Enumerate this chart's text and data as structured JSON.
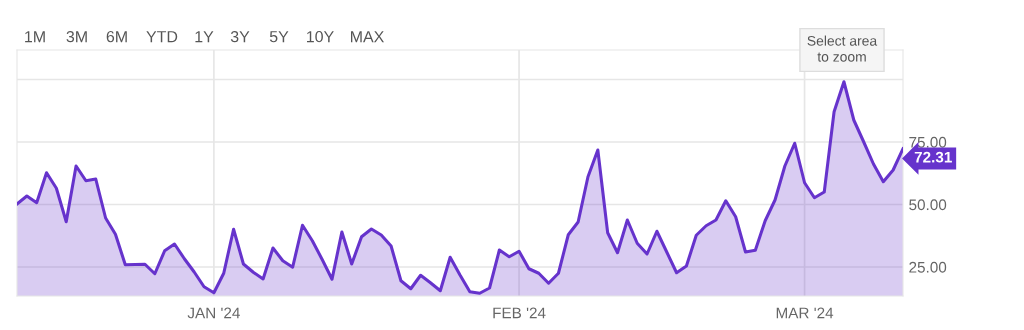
{
  "chart_data": {
    "type": "area",
    "x": [
      "2023-12-12",
      "2023-12-13",
      "2023-12-14",
      "2023-12-15",
      "2023-12-16",
      "2023-12-17",
      "2023-12-18",
      "2023-12-19",
      "2023-12-20",
      "2023-12-21",
      "2023-12-22",
      "2023-12-23",
      "2023-12-24",
      "2023-12-25",
      "2023-12-26",
      "2023-12-27",
      "2023-12-28",
      "2023-12-29",
      "2023-12-30",
      "2023-12-31",
      "2024-01-01",
      "2024-01-02",
      "2024-01-03",
      "2024-01-04",
      "2024-01-05",
      "2024-01-06",
      "2024-01-07",
      "2024-01-08",
      "2024-01-09",
      "2024-01-10",
      "2024-01-11",
      "2024-01-12",
      "2024-01-13",
      "2024-01-14",
      "2024-01-15",
      "2024-01-16",
      "2024-01-17",
      "2024-01-18",
      "2024-01-19",
      "2024-01-20",
      "2024-01-21",
      "2024-01-22",
      "2024-01-23",
      "2024-01-24",
      "2024-01-25",
      "2024-01-26",
      "2024-01-27",
      "2024-01-28",
      "2024-01-29",
      "2024-01-30",
      "2024-01-31",
      "2024-02-01",
      "2024-02-02",
      "2024-02-03",
      "2024-02-04",
      "2024-02-05",
      "2024-02-06",
      "2024-02-07",
      "2024-02-08",
      "2024-02-09",
      "2024-02-10",
      "2024-02-11",
      "2024-02-12",
      "2024-02-13",
      "2024-02-14",
      "2024-02-15",
      "2024-02-16",
      "2024-02-17",
      "2024-02-18",
      "2024-02-19",
      "2024-02-20",
      "2024-02-21",
      "2024-02-22",
      "2024-02-23",
      "2024-02-24",
      "2024-02-25",
      "2024-02-26",
      "2024-02-27",
      "2024-02-28",
      "2024-02-29",
      "2024-03-01",
      "2024-03-02",
      "2024-03-03",
      "2024-03-04",
      "2024-03-05",
      "2024-03-06",
      "2024-03-07",
      "2024-03-08",
      "2024-03-09",
      "2024-03-10",
      "2024-03-11"
    ],
    "series": [
      {
        "color": "#6633cc",
        "values": [
          50.2,
          53.4,
          50.7,
          62.7,
          56.5,
          43.1,
          65.4,
          59.5,
          60.2,
          44.6,
          38.1,
          25.9,
          26.0,
          26.1,
          22.3,
          31.5,
          34.2,
          28.3,
          23.0,
          17.1,
          14.7,
          22.5,
          40.1,
          26.2,
          22.9,
          20.2,
          32.6,
          27.5,
          24.9,
          41.7,
          35.5,
          28.0,
          20.1,
          39.0,
          26.2,
          37.1,
          40.2,
          37.8,
          33.4,
          19.5,
          16.3,
          21.7,
          18.7,
          15.5,
          28.9,
          21.8,
          15.1,
          14.5,
          16.6,
          31.8,
          29.1,
          31.3,
          24.3,
          22.5,
          18.5,
          22.5,
          37.9,
          43.0,
          61.1,
          71.8,
          38.7,
          30.7,
          43.8,
          34.5,
          30.2,
          39.3,
          31.0,
          22.7,
          25.4,
          37.7,
          41.5,
          43.8,
          51.5,
          45.1,
          31.0,
          31.7,
          43.5,
          51.8,
          65.4,
          74.5,
          58.7,
          52.7,
          55.0,
          87.1,
          99.1,
          83.8,
          75.1,
          66.2,
          59.1,
          63.8,
          72.31
        ]
      }
    ],
    "xlim": [
      "2023-12-12",
      "2024-03-11"
    ],
    "xticks": [
      {
        "value": "2024-01-01",
        "label": "JAN '24"
      },
      {
        "value": "2024-02-01",
        "label": "FEB '24"
      },
      {
        "value": "2024-03-01",
        "label": "MAR '24"
      }
    ],
    "ylim": [
      13.4,
      111.8
    ],
    "yticks": [
      {
        "value": 25,
        "label": "25.00"
      },
      {
        "value": 50,
        "label": "50.00"
      },
      {
        "value": 75,
        "label": "75.00"
      },
      {
        "value": 100,
        "label": null
      }
    ],
    "grid": true,
    "annotations": [
      "1M",
      "3M",
      "6M",
      "YTD",
      "1Y",
      "3Y",
      "5Y",
      "10Y",
      "MAX",
      "Select area\nto zoom",
      {
        "text": "72.31",
        "x": "2024-03-11",
        "y": 72.31
      }
    ]
  }
}
